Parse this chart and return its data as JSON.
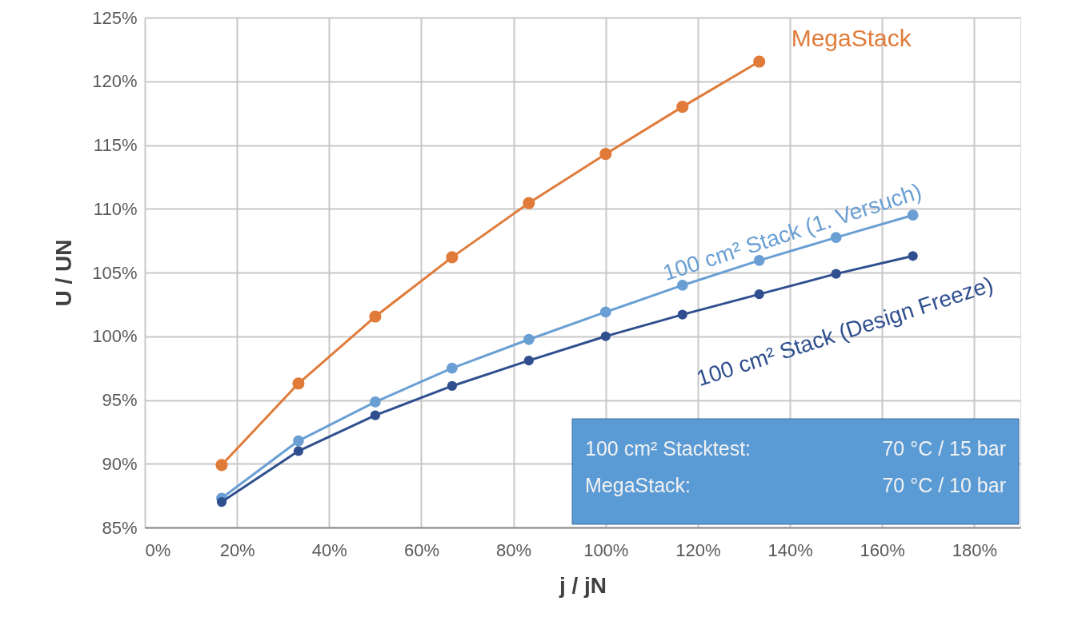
{
  "chart_data": {
    "type": "line",
    "xlabel": "j / jN",
    "ylabel": "U / UN",
    "xlim": [
      0,
      190
    ],
    "ylim": [
      85,
      125
    ],
    "xticks": [
      {
        "value": 0,
        "label": "0%"
      },
      {
        "value": 20,
        "label": "20%"
      },
      {
        "value": 40,
        "label": "40%"
      },
      {
        "value": 60,
        "label": "60%"
      },
      {
        "value": 80,
        "label": "80%"
      },
      {
        "value": 100,
        "label": "100%"
      },
      {
        "value": 120,
        "label": "120%"
      },
      {
        "value": 140,
        "label": "140%"
      },
      {
        "value": 160,
        "label": "160%"
      },
      {
        "value": 180,
        "label": "180%"
      }
    ],
    "yticks": [
      {
        "value": 85,
        "label": "85%"
      },
      {
        "value": 90,
        "label": "90%"
      },
      {
        "value": 95,
        "label": "95%"
      },
      {
        "value": 100,
        "label": "100%"
      },
      {
        "value": 105,
        "label": "105%"
      },
      {
        "value": 110,
        "label": "110%"
      },
      {
        "value": 115,
        "label": "115%"
      },
      {
        "value": 120,
        "label": "120%"
      },
      {
        "value": 125,
        "label": "125%"
      }
    ],
    "grid": true,
    "marker": "circle",
    "line_style": "solid",
    "series": [
      {
        "name": "MegaStack",
        "color": "#e07b39",
        "x": [
          16.67,
          33.33,
          50,
          66.67,
          83.33,
          100,
          116.67,
          133.33
        ],
        "values": [
          89.9,
          96.3,
          101.55,
          106.2,
          110.45,
          114.3,
          118.0,
          121.55
        ]
      },
      {
        "name": "100 cm² Stack (1. Versuch)",
        "color": "#6a9fd4",
        "x": [
          16.67,
          33.33,
          50,
          66.67,
          83.33,
          100,
          116.67,
          133.33,
          150,
          166.67
        ],
        "values": [
          87.3,
          91.8,
          94.85,
          97.5,
          99.75,
          101.9,
          104.0,
          105.95,
          107.75,
          109.5
        ]
      },
      {
        "name": "100 cm² Stack (Design Freeze)",
        "color": "#2f4f8f",
        "x": [
          16.67,
          33.33,
          50,
          66.67,
          83.33,
          100,
          116.67,
          133.33,
          150,
          166.67
        ],
        "values": [
          87.0,
          91.0,
          93.8,
          96.1,
          98.1,
          100.0,
          101.7,
          103.3,
          104.9,
          106.3
        ]
      }
    ],
    "annotations": [
      "100 cm² Stacktest:  70 °C / 15 bar",
      "MegaStack:  70 °C / 10 bar"
    ]
  }
}
